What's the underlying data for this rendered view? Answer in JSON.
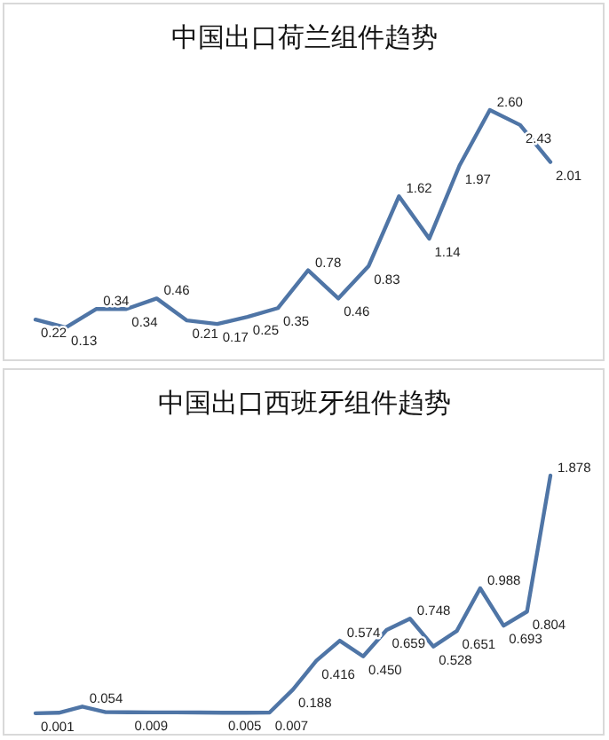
{
  "chart_data": [
    {
      "type": "line",
      "title": "中国出口荷兰组件趋势",
      "categories": [
        null,
        null,
        null,
        null,
        null,
        null,
        null,
        null,
        null,
        null,
        null,
        null,
        null,
        null,
        null,
        null,
        null,
        null
      ],
      "series": [
        {
          "color": "#4f75a6",
          "values": [
            0.22,
            0.13,
            0.34,
            0.34,
            0.46,
            0.21,
            0.17,
            0.25,
            0.35,
            0.78,
            0.46,
            0.83,
            1.62,
            1.14,
            1.97,
            2.6,
            2.43,
            2.01
          ],
          "value_labels": [
            "0.22",
            "0.13",
            "0.34",
            "0.34",
            "0.46",
            "0.21",
            "0.17",
            "0.25",
            "0.35",
            "0.78",
            "0.46",
            "0.83",
            "1.62",
            "1.14",
            "1.97",
            "2.60",
            "2.43",
            "2.01"
          ]
        }
      ],
      "relative": false,
      "marker": "none"
    },
    {
      "type": "line",
      "title": "中国出口西班牙组件趋势",
      "categories": [
        null,
        null,
        null,
        null,
        null,
        null,
        null,
        null,
        null,
        null,
        null,
        null,
        null,
        null,
        null,
        null,
        null,
        null,
        null,
        null,
        null,
        null,
        null
      ],
      "series": [
        {
          "color": "#4f75a6",
          "values": [
            0.001,
            0.005,
            0.054,
            0.01,
            0.009,
            0.008,
            0.008,
            0.007,
            0.005,
            0.005,
            0.007,
            0.188,
            0.416,
            0.574,
            0.45,
            0.659,
            0.748,
            0.528,
            0.651,
            0.988,
            0.693,
            0.804,
            1.878
          ],
          "value_labels": [
            "0.001",
            null,
            "0.054",
            null,
            "0.009",
            null,
            null,
            null,
            "0.005",
            null,
            "0.007",
            "0.188",
            "0.416",
            "0.574",
            "0.450",
            "0.659",
            "0.748",
            "0.528",
            "0.651",
            "0.988",
            "0.693",
            "0.804",
            "1.878"
          ]
        }
      ],
      "relative": false,
      "marker": "none"
    }
  ]
}
